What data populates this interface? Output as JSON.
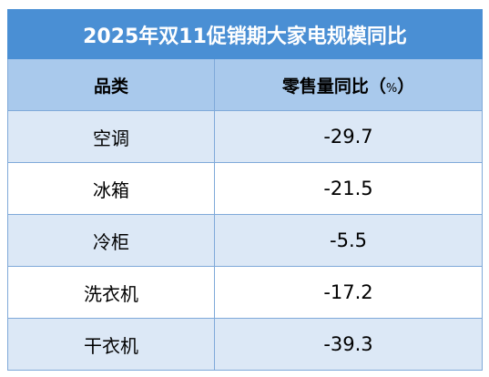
{
  "chart_data": {
    "type": "table",
    "title": "2025年双11促销期大家电规模同比",
    "columns": [
      "品类",
      "零售量同比（%）"
    ],
    "rows": [
      {
        "category": "空调",
        "value": "-29.7"
      },
      {
        "category": "冰箱",
        "value": "-21.5"
      },
      {
        "category": "冷柜",
        "value": "-5.5"
      },
      {
        "category": "洗衣机",
        "value": "-17.2"
      },
      {
        "category": "干衣机",
        "value": "-39.3"
      }
    ]
  },
  "colors": {
    "title_bg": "#4a8fd4",
    "header_bg": "#a9c9ec",
    "row_alt_bg": "#dce8f6",
    "row_bg": "#ffffff",
    "border": "#7fa9d9"
  },
  "header": {
    "col1": "品类",
    "col2_main": "零售量同比（",
    "col2_unit": "%",
    "col2_close": "）"
  }
}
